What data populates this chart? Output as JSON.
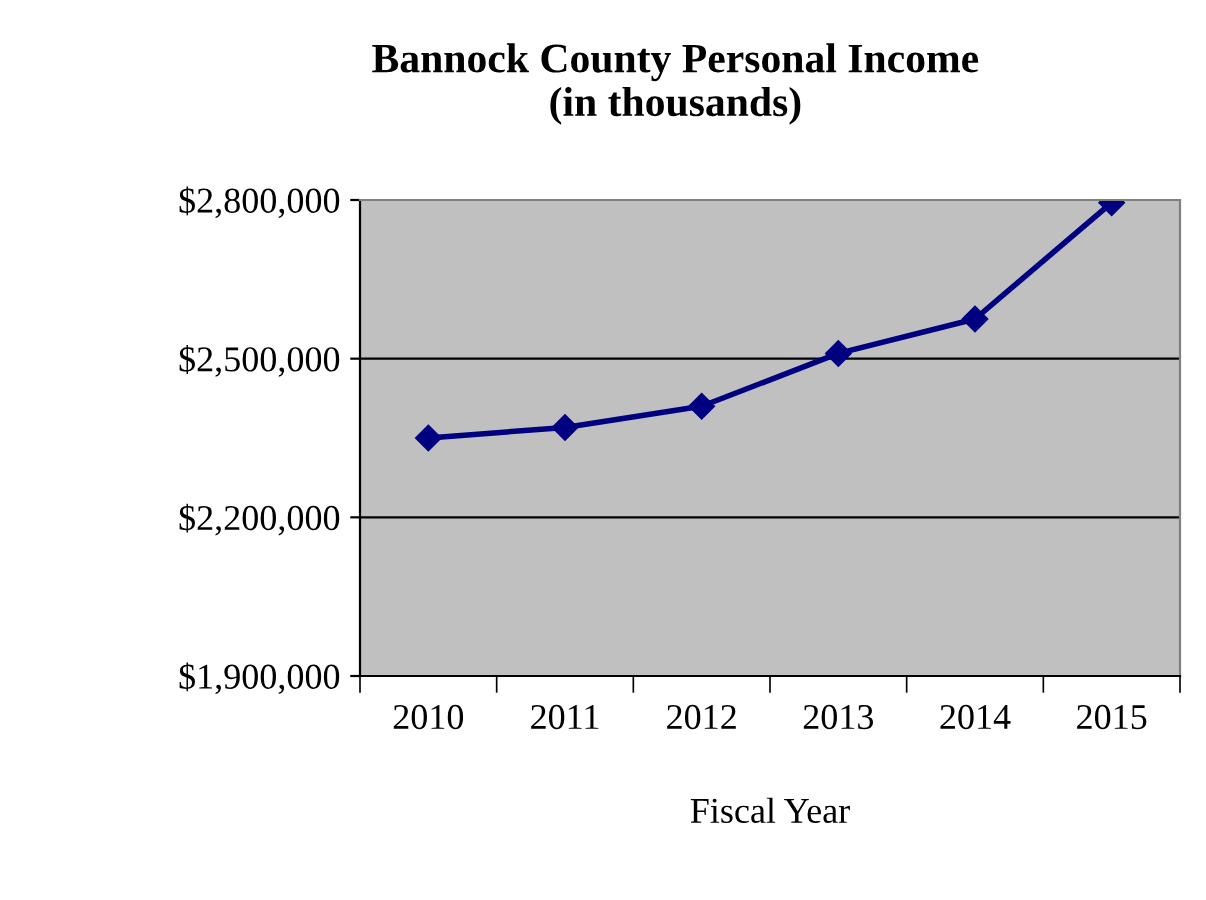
{
  "chart_data": {
    "type": "line",
    "title": "Bannock County Personal Income\n(in thousands)",
    "xlabel": "Fiscal Year",
    "categories": [
      "2010",
      "2011",
      "2012",
      "2013",
      "2014",
      "2015"
    ],
    "series": [
      {
        "color": "#000080",
        "values": [
          2350000,
          2370000,
          2410000,
          2510000,
          2575000,
          2795000
        ]
      }
    ],
    "ylim": [
      1900000,
      2800000
    ],
    "yticks": [
      {
        "value": 1900000,
        "label": "$1,900,000"
      },
      {
        "value": 2200000,
        "label": "$2,200,000"
      },
      {
        "value": 2500000,
        "label": "$2,500,000"
      },
      {
        "value": 2800000,
        "label": "$2,800,000"
      }
    ],
    "grid": "y",
    "marker": "diamond",
    "line_style": "solid",
    "legend": false
  }
}
